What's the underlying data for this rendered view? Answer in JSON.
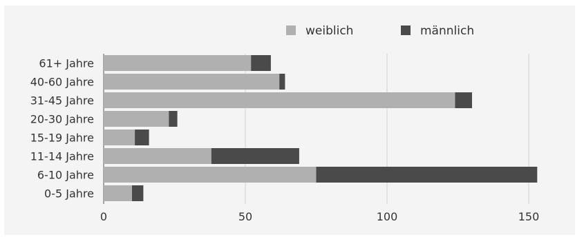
{
  "chart_data": {
    "type": "bar",
    "orientation": "horizontal",
    "stacked": true,
    "categories": [
      "61+ Jahre",
      "40-60 Jahre",
      "31-45 Jahre",
      "20-30 Jahre",
      "15-19 Jahre",
      "11-14 Jahre",
      "6-10 Jahre",
      "0-5 Jahre"
    ],
    "series": [
      {
        "name": "weiblich",
        "color": "#b0b0b0",
        "values": [
          52,
          62,
          124,
          23,
          11,
          38,
          75,
          10
        ]
      },
      {
        "name": "männlich",
        "color": "#4a4a4a",
        "values": [
          7,
          2,
          6,
          3,
          5,
          31,
          78,
          4
        ]
      }
    ],
    "xlim": [
      0,
      160
    ],
    "xticks": [
      "0",
      "50",
      "100",
      "150"
    ],
    "xtick_values": [
      0,
      50,
      100,
      150
    ],
    "grid": true,
    "legend_position": "top-right"
  }
}
